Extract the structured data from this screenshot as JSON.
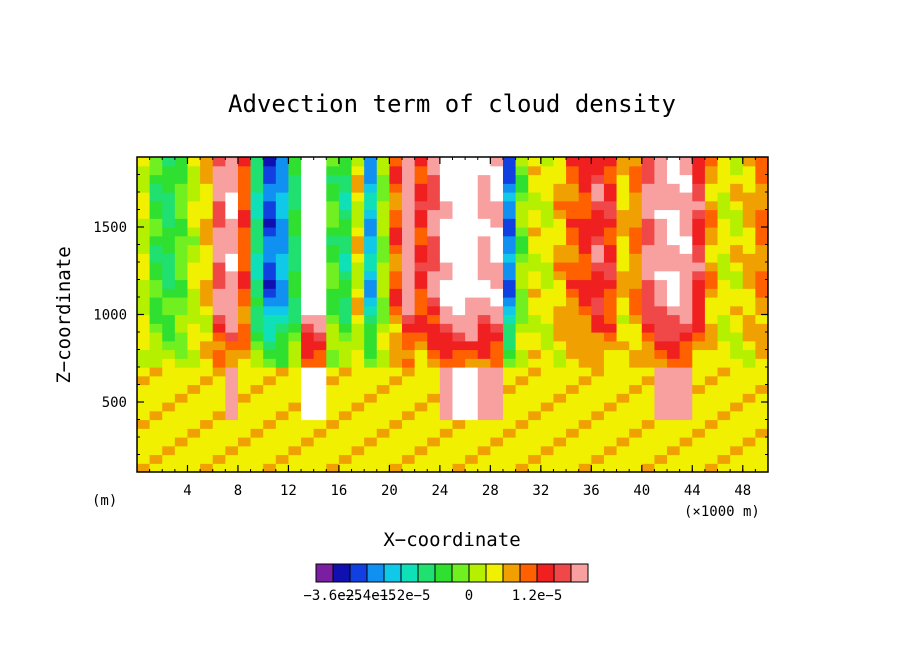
{
  "chart_data": {
    "type": "heatmap",
    "title": "Advection term of cloud density",
    "xlabel": "X−coordinate",
    "ylabel": "Z−coordinate",
    "x_unit_left": "(m)",
    "x_unit_right": "(×1000 m)",
    "xlim": [
      0,
      50
    ],
    "ylim": [
      100,
      1900
    ],
    "x_ticks": [
      "4",
      "8",
      "12",
      "16",
      "20",
      "24",
      "28",
      "32",
      "36",
      "40",
      "44",
      "48"
    ],
    "y_ticks": [
      "500",
      "1000",
      "1500"
    ],
    "colorbar": {
      "colors": [
        "#7b1fa2",
        "#1010b0",
        "#1040e0",
        "#1090f0",
        "#10c8e8",
        "#10e0b8",
        "#20e070",
        "#30e030",
        "#70f020",
        "#b4f000",
        "#f0f000",
        "#f0a000",
        "#ff6000",
        "#f02020",
        "#f04848",
        "#f8a0a0"
      ],
      "labels": [
        "−3.6e−5",
        "−2.4e−5",
        "−1.2e−5",
        "0",
        "1.2e−5"
      ]
    },
    "columns": [
      {
        "x": 0,
        "v": 0.2
      },
      {
        "x": 1,
        "v": -0.9
      },
      {
        "x": 2,
        "v": -1.1
      },
      {
        "x": 3,
        "v": -0.6
      },
      {
        "x": 4,
        "v": 0.1
      },
      {
        "x": 5,
        "v": 0.6
      },
      {
        "x": 6,
        "v": 2.6
      },
      {
        "x": 7,
        "v": 3.4
      },
      {
        "x": 8,
        "v": 1.5
      },
      {
        "x": 9,
        "v": -1.5
      },
      {
        "x": 10,
        "v": -3.1
      },
      {
        "x": 11,
        "v": -2.5
      },
      {
        "x": 12,
        "v": -1.2
      },
      {
        "x": 13,
        "v": 4
      },
      {
        "x": 14,
        "v": 4
      },
      {
        "x": 15,
        "v": -0.8
      },
      {
        "x": 16,
        "v": -1.4
      },
      {
        "x": 17,
        "v": 0.4
      },
      {
        "x": 18,
        "v": -2.3
      },
      {
        "x": 19,
        "v": -0.2
      },
      {
        "x": 20,
        "v": 1.4
      },
      {
        "x": 21,
        "v": 2.9
      },
      {
        "x": 22,
        "v": 1.8
      },
      {
        "x": 23,
        "v": 2.4
      },
      {
        "x": 24,
        "v": 3.7
      },
      {
        "x": 25,
        "v": 4
      },
      {
        "x": 26,
        "v": 3.9
      },
      {
        "x": 27,
        "v": 3.2
      },
      {
        "x": 28,
        "v": 3.5
      },
      {
        "x": 29,
        "v": -2.8
      },
      {
        "x": 30,
        "v": -0.4
      },
      {
        "x": 31,
        "v": 0.4
      },
      {
        "x": 32,
        "v": 0.3
      },
      {
        "x": 33,
        "v": 0.8
      },
      {
        "x": 34,
        "v": 1.3
      },
      {
        "x": 35,
        "v": 1.6
      },
      {
        "x": 36,
        "v": 2.2
      },
      {
        "x": 37,
        "v": 1.8
      },
      {
        "x": 38,
        "v": 0.6
      },
      {
        "x": 39,
        "v": 1.1
      },
      {
        "x": 40,
        "v": 2.6
      },
      {
        "x": 41,
        "v": 3.2
      },
      {
        "x": 42,
        "v": 3.6
      },
      {
        "x": 43,
        "v": 3.3
      },
      {
        "x": 44,
        "v": 2.2
      },
      {
        "x": 45,
        "v": 0.9
      },
      {
        "x": 46,
        "v": 0.2
      },
      {
        "x": 47,
        "v": 0.4
      },
      {
        "x": 48,
        "v": 0.7
      },
      {
        "x": 49,
        "v": 1.2
      }
    ]
  }
}
